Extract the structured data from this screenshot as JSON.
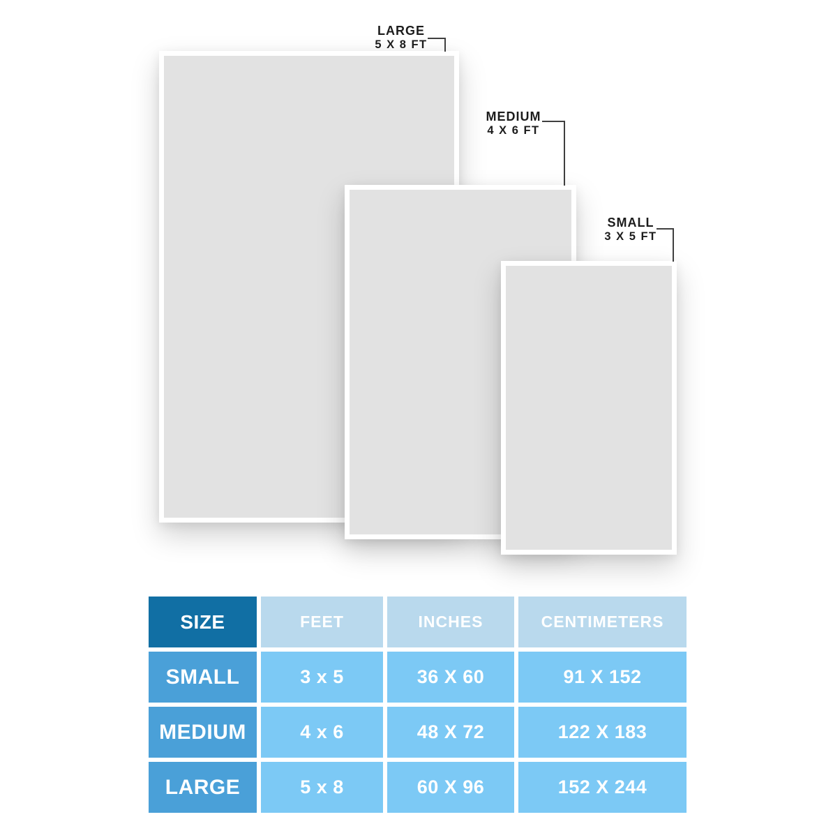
{
  "diagram": {
    "sizes": [
      {
        "name": "LARGE",
        "dims": "5 X 8 FT"
      },
      {
        "name": "MEDIUM",
        "dims": "4 X 6 FT"
      },
      {
        "name": "SMALL",
        "dims": "3 X 5 FT"
      }
    ]
  },
  "table": {
    "headers": [
      "SIZE",
      "FEET",
      "INCHES",
      "CENTIMETERS"
    ],
    "rows": [
      {
        "size": "SMALL",
        "feet": "3 x 5",
        "inches": "36 X 60",
        "centimeters": "91 X 152"
      },
      {
        "size": "MEDIUM",
        "feet": "4 x 6",
        "inches": "48 X 72",
        "centimeters": "122 X 183"
      },
      {
        "size": "LARGE",
        "feet": "5 x 8",
        "inches": "60 X 96",
        "centimeters": "152 X 244"
      }
    ]
  },
  "colors": {
    "header_dark": "#116fa4",
    "header_light": "#b9d9ed",
    "label_cell": "#4aa0d8",
    "data_cell": "#7cc9f5",
    "table_text": "#ffffff",
    "rug_fill": "#e2e2e2",
    "rug_border": "#ffffff",
    "connector": "#3f3f3f",
    "label_text": "#1c1c1c",
    "page_bg": "#ffffff"
  }
}
